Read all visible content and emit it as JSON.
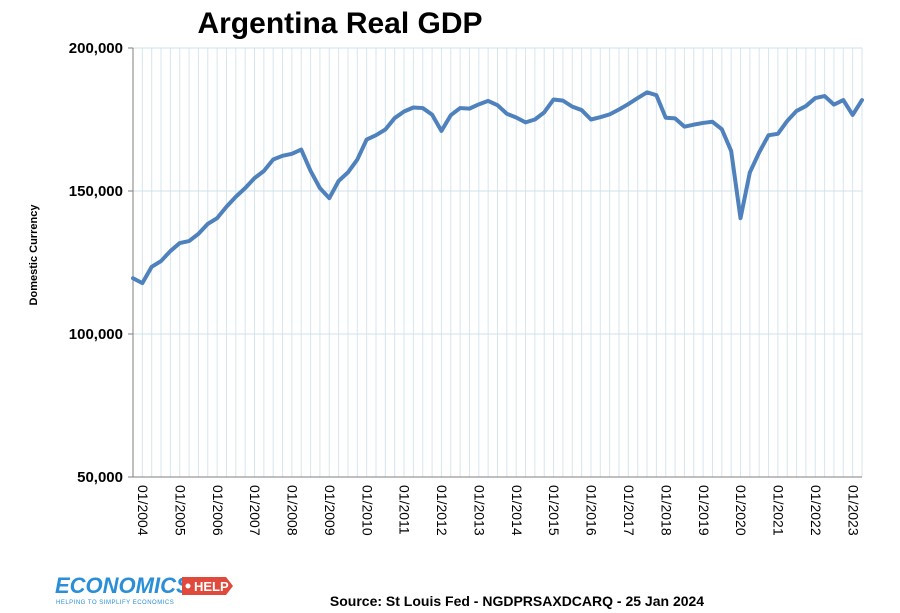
{
  "chart_data": {
    "type": "line",
    "title": "Argentina Real GDP",
    "ylabel": "Domestic Currency",
    "xlabel": "",
    "ylim": [
      50000,
      200000
    ],
    "yticks": [
      "200,000",
      "150,000",
      "100,000",
      "50,000"
    ],
    "ytick_values": [
      200000,
      150000,
      100000,
      50000
    ],
    "xticks": [
      "01/2004",
      "01/2005",
      "01/2006",
      "01/2007",
      "01/2008",
      "01/2009",
      "01/2010",
      "01/2011",
      "01/2012",
      "01/2013",
      "01/2014",
      "01/2015",
      "01/2016",
      "01/2017",
      "01/2018",
      "01/2019",
      "01/2020",
      "01/2021",
      "01/2022",
      "01/2023"
    ],
    "grid": "vertical-quarterly",
    "line_color": "#4f81bd",
    "source": "Source: St Louis Fed - NGDPRSAXDCARQ - 25 Jan 2024",
    "series": [
      {
        "values": [
          119500,
          117800,
          123500,
          125500,
          129000,
          131800,
          132500,
          135000,
          138500,
          140500,
          144500,
          148000,
          151000,
          154500,
          157000,
          161000,
          162300,
          163000,
          164500,
          157000,
          151000,
          147500,
          153500,
          156500,
          161000,
          168000,
          169500,
          171500,
          175500,
          177800,
          179200,
          179000,
          176700,
          171000,
          176500,
          179000,
          178800,
          180300,
          181500,
          180000,
          177000,
          175700,
          174000,
          175000,
          177500,
          182000,
          181600,
          179500,
          178300,
          175000,
          175800,
          176800,
          178500,
          180400,
          182500,
          184500,
          183500,
          175600,
          175400,
          172500,
          173200,
          173800,
          174200,
          171600,
          164000,
          140500,
          156500,
          163500,
          169500,
          170000,
          174500,
          178000,
          179700,
          182500,
          183200,
          180200,
          181800,
          176600,
          181800
        ]
      }
    ]
  },
  "branding": {
    "logo_main": "ECONOMICS",
    "logo_help": "HELP",
    "logo_tagline": "HELPING TO SIMPLIFY ECONOMICS",
    "brand_color": "#2a8fd6",
    "tag_color": "#e04a3c"
  }
}
